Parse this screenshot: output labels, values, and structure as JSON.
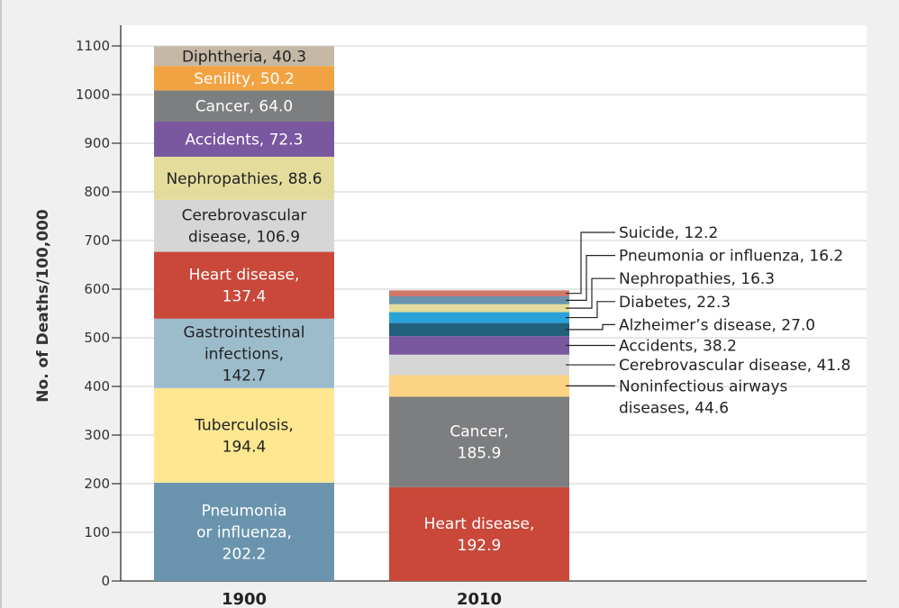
{
  "chart_data": {
    "type": "bar",
    "stacked": true,
    "ylabel": "No. of Deaths/100,000",
    "xlabel": "",
    "ylim": [
      0,
      1100
    ],
    "yticks": [
      0,
      100,
      200,
      300,
      400,
      500,
      600,
      700,
      800,
      900,
      1000,
      1100
    ],
    "grid": true,
    "categories": [
      "1900",
      "2010"
    ],
    "bars": [
      {
        "category": "1900",
        "segments": [
          {
            "lines": [
              "Pneumonia",
              "or influenza,",
              "202.2"
            ],
            "value": 202.2,
            "color": "#6a94ad"
          },
          {
            "lines": [
              "Tuberculosis,",
              "194.4"
            ],
            "value": 194.4,
            "color": "#fde791"
          },
          {
            "lines": [
              "Gastrointestinal",
              "infections,",
              "142.7"
            ],
            "value": 142.7,
            "color": "#9cbccc"
          },
          {
            "lines": [
              "Heart disease,",
              "137.4"
            ],
            "value": 137.4,
            "color": "#c9483a"
          },
          {
            "lines": [
              "Cerebrovascular",
              "disease, 106.9"
            ],
            "value": 106.9,
            "color": "#d6d6d6"
          },
          {
            "lines": [
              "Nephropathies, 88.6"
            ],
            "value": 88.6,
            "color": "#e3dc9c"
          },
          {
            "lines": [
              "Accidents, 72.3"
            ],
            "value": 72.3,
            "color": "#7a58a0"
          },
          {
            "lines": [
              "Cancer, 64.0"
            ],
            "value": 64.0,
            "color": "#7c7e80"
          },
          {
            "lines": [
              "Senility, 50.2"
            ],
            "value": 50.2,
            "color": "#f2a341"
          },
          {
            "lines": [
              "Diphtheria, 40.3"
            ],
            "value": 40.3,
            "color": "#c5b9a5"
          }
        ]
      },
      {
        "category": "2010",
        "segments": [
          {
            "lines": [
              "Heart disease,",
              "192.9"
            ],
            "value": 192.9,
            "color": "#c9483a"
          },
          {
            "lines": [
              "Cancer,",
              "185.9"
            ],
            "value": 185.9,
            "color": "#7c7e80"
          },
          {
            "lines": [
              "Noninfectious airways",
              "diseases, 44.6"
            ],
            "value": 44.6,
            "color": "#fcd382",
            "callout": true
          },
          {
            "lines": [
              "Cerebrovascular disease, 41.8"
            ],
            "value": 41.8,
            "color": "#d6d6d6",
            "callout": true
          },
          {
            "lines": [
              "Accidents, 38.2"
            ],
            "value": 38.2,
            "color": "#7a58a0",
            "callout": true
          },
          {
            "lines": [
              "Alzheimer’s disease, 27.0"
            ],
            "value": 27.0,
            "color": "#23607e",
            "callout": true
          },
          {
            "lines": [
              "Diabetes, 22.3"
            ],
            "value": 22.3,
            "color": "#2aa3d8",
            "callout": true
          },
          {
            "lines": [
              "Nephropathies, 16.3"
            ],
            "value": 16.3,
            "color": "#e3dc9c",
            "callout": true
          },
          {
            "lines": [
              "Pneumonia or influenza, 16.2"
            ],
            "value": 16.2,
            "color": "#6a94ad",
            "callout": true
          },
          {
            "lines": [
              "Suicide, 12.2"
            ],
            "value": 12.2,
            "color": "#d0786a",
            "callout": true
          }
        ]
      }
    ]
  }
}
